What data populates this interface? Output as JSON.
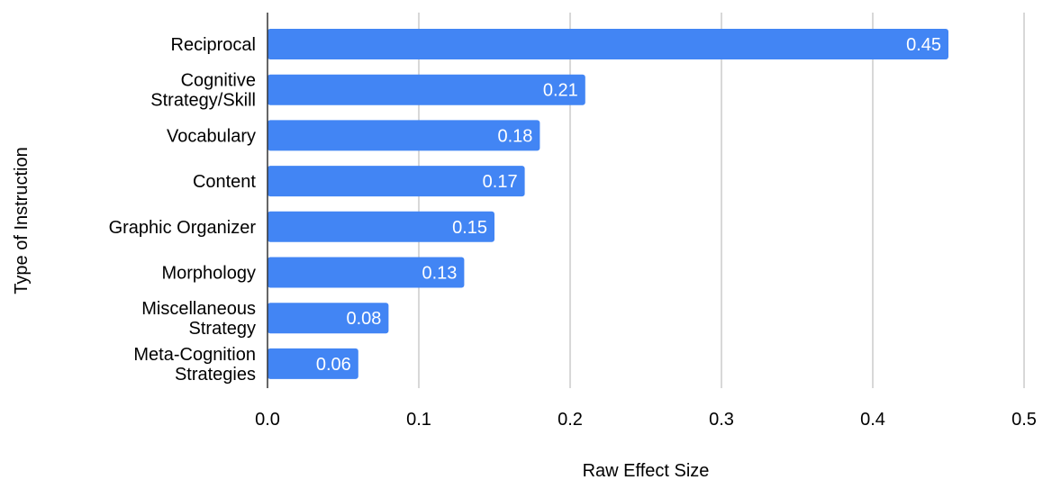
{
  "chart_data": {
    "type": "bar",
    "orientation": "horizontal",
    "categories": [
      [
        "Reciprocal"
      ],
      [
        "Cognitive",
        "Strategy/Skill"
      ],
      [
        "Vocabulary"
      ],
      [
        "Content"
      ],
      [
        "Graphic Organizer"
      ],
      [
        "Morphology"
      ],
      [
        "Miscellaneous",
        "Strategy"
      ],
      [
        "Meta-Cognition",
        "Strategies"
      ]
    ],
    "values": [
      0.45,
      0.21,
      0.18,
      0.17,
      0.15,
      0.13,
      0.08,
      0.06
    ],
    "value_labels": [
      "0.45",
      "0.21",
      "0.18",
      "0.17",
      "0.15",
      "0.13",
      "0.08",
      "0.06"
    ],
    "xlabel": "Raw Effect Size",
    "ylabel": "Type of Instruction",
    "xlim": [
      0,
      0.5
    ],
    "xticks": [
      0,
      0.1,
      0.2,
      0.3,
      0.4,
      0.5
    ],
    "xtick_labels": [
      "0.0",
      "0.1",
      "0.2",
      "0.3",
      "0.4",
      "0.5"
    ],
    "grid": true,
    "legend": "none",
    "bar_color": "#4285f4",
    "grid_color": "#cccccc",
    "axis_color": "#333333"
  }
}
